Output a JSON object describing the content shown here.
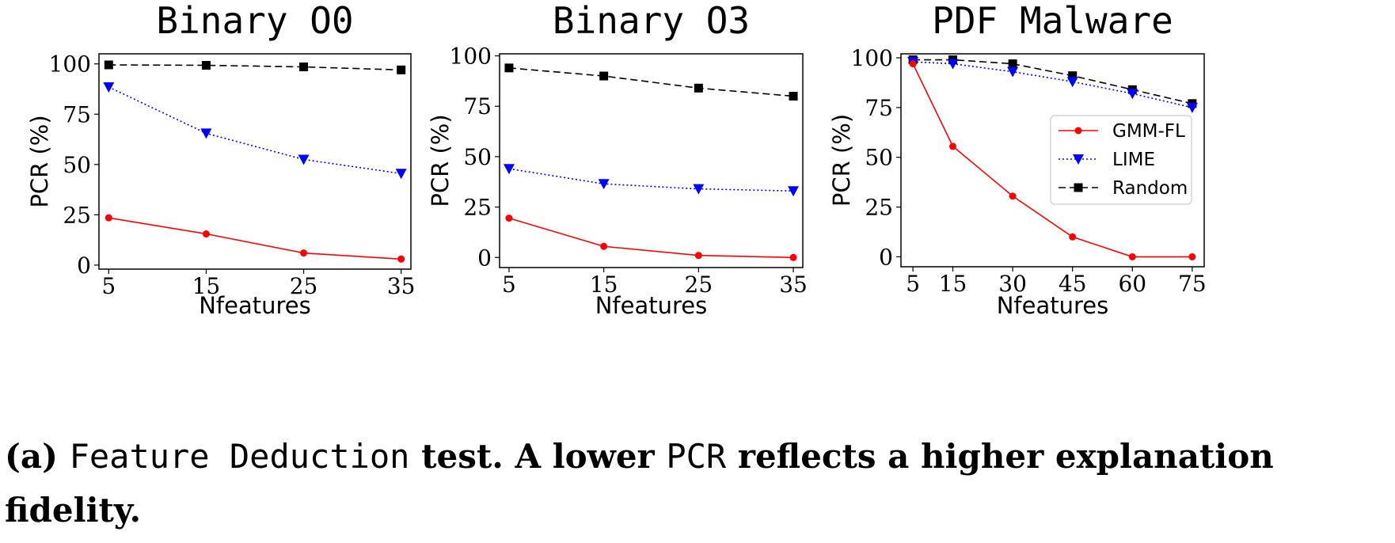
{
  "caption": {
    "label": "(a)",
    "term1": "Feature Deduction",
    "text1": "test. A lower",
    "term2": "PCR",
    "text2": "reflects a higher explanation fidelity."
  },
  "colors": {
    "GMM-FL": "#ff0000",
    "LIME": "#0000ff",
    "Random": "#000000"
  },
  "chart_data": [
    {
      "type": "line",
      "title": "Binary O0",
      "xlabel": "Nfeatures",
      "ylabel": "PCR (%)",
      "x": [
        5,
        15,
        25,
        35
      ],
      "xticks": [
        5,
        15,
        25,
        35
      ],
      "yticks": [
        0,
        25,
        50,
        75,
        100
      ],
      "xlim": [
        4,
        36
      ],
      "ylim": [
        -2,
        105
      ],
      "legend": null,
      "series": [
        {
          "name": "GMM-FL",
          "marker": "circle",
          "line": "solid",
          "values": [
            23.5,
            15.5,
            6,
            3
          ]
        },
        {
          "name": "LIME",
          "marker": "triangle-down",
          "line": "dotted",
          "values": [
            88.5,
            65.5,
            52.5,
            45.5
          ]
        },
        {
          "name": "Random",
          "marker": "square",
          "line": "dashed",
          "values": [
            99.5,
            99.3,
            98.5,
            97
          ]
        }
      ]
    },
    {
      "type": "line",
      "title": "Binary O3",
      "xlabel": "Nfeatures",
      "ylabel": "PCR (%)",
      "x": [
        5,
        15,
        25,
        35
      ],
      "xticks": [
        5,
        15,
        25,
        35
      ],
      "yticks": [
        0,
        25,
        50,
        75,
        100
      ],
      "xlim": [
        4,
        36
      ],
      "ylim": [
        -5,
        101
      ],
      "legend": null,
      "series": [
        {
          "name": "GMM-FL",
          "marker": "circle",
          "line": "solid",
          "values": [
            19.5,
            5.5,
            1,
            0
          ]
        },
        {
          "name": "LIME",
          "marker": "triangle-down",
          "line": "dotted",
          "values": [
            44,
            36.5,
            34,
            33
          ]
        },
        {
          "name": "Random",
          "marker": "square",
          "line": "dashed",
          "values": [
            94,
            90,
            84,
            80
          ]
        }
      ]
    },
    {
      "type": "line",
      "title": "PDF Malware",
      "xlabel": "Nfeatures",
      "ylabel": "PCR (%)",
      "x": [
        5,
        15,
        30,
        45,
        60,
        75
      ],
      "xticks": [
        5,
        15,
        30,
        45,
        60,
        75
      ],
      "yticks": [
        0,
        25,
        50,
        75,
        100
      ],
      "xlim": [
        2,
        78
      ],
      "ylim": [
        -5,
        102
      ],
      "legend": "center-right",
      "series": [
        {
          "name": "GMM-FL",
          "marker": "circle",
          "line": "solid",
          "values": [
            97,
            55.5,
            30.5,
            10,
            0,
            0
          ]
        },
        {
          "name": "LIME",
          "marker": "triangle-down",
          "line": "dotted",
          "values": [
            98,
            97,
            93,
            88,
            82,
            75
          ]
        },
        {
          "name": "Random",
          "marker": "square",
          "line": "dashed",
          "values": [
            99,
            99,
            97,
            91,
            84,
            77
          ]
        }
      ]
    }
  ]
}
